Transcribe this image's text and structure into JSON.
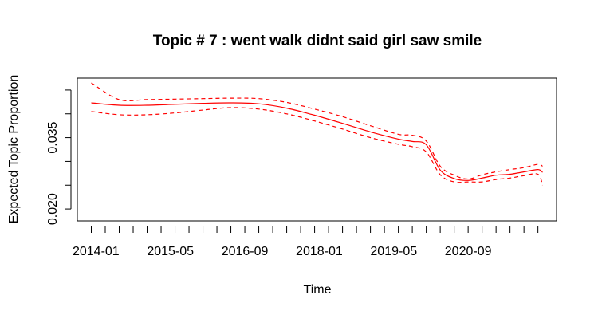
{
  "chart_data": {
    "type": "line",
    "title": "Topic # 7 :  went walk didnt said girl saw smile",
    "xlabel": "Time",
    "ylabel": "Expected Topic Proportion",
    "x_tick_labels": [
      "2014-01",
      "2015-05",
      "2016-09",
      "2018-01",
      "2019-05",
      "2020-09"
    ],
    "y_tick_labels": [
      "0.020",
      "0.035"
    ],
    "y_ticks": [
      0.02,
      0.025,
      0.03,
      0.035,
      0.04,
      0.045
    ],
    "ylim": [
      0.0175,
      0.0475
    ],
    "xlim": [
      "2013-09",
      "2022-04"
    ],
    "grid": false,
    "line_color": "#ff0000",
    "x": [
      "2013-12",
      "2014-06",
      "2014-12",
      "2015-06",
      "2015-12",
      "2016-06",
      "2016-12",
      "2017-06",
      "2017-12",
      "2018-06",
      "2018-12",
      "2019-06",
      "2019-09",
      "2019-12",
      "2020-03",
      "2020-06",
      "2020-09",
      "2020-12",
      "2021-03",
      "2021-06",
      "2021-09",
      "2021-12",
      "2022-01"
    ],
    "series": [
      {
        "values": [
          0.0423,
          0.0418,
          0.0418,
          0.042,
          0.0422,
          0.0423,
          0.0421,
          0.0412,
          0.0397,
          0.038,
          0.0362,
          0.0347,
          0.0342,
          0.0335,
          0.0282,
          0.0264,
          0.026,
          0.0265,
          0.0271,
          0.0273,
          0.0278,
          0.0283,
          0.0277
        ],
        "style": "solid"
      },
      {
        "values": [
          0.0465,
          0.043,
          0.043,
          0.0431,
          0.0432,
          0.0433,
          0.0432,
          0.0424,
          0.041,
          0.0394,
          0.0375,
          0.0357,
          0.0355,
          0.0343,
          0.029,
          0.0271,
          0.0263,
          0.0272,
          0.0278,
          0.0283,
          0.0287,
          0.0294,
          0.029
        ],
        "style": "dashed"
      },
      {
        "values": [
          0.0405,
          0.0398,
          0.0398,
          0.0402,
          0.0408,
          0.0413,
          0.041,
          0.04,
          0.0385,
          0.0368,
          0.035,
          0.0336,
          0.0331,
          0.032,
          0.0272,
          0.0257,
          0.0257,
          0.0257,
          0.0262,
          0.0265,
          0.027,
          0.0273,
          0.025
        ],
        "style": "dashed"
      }
    ]
  }
}
